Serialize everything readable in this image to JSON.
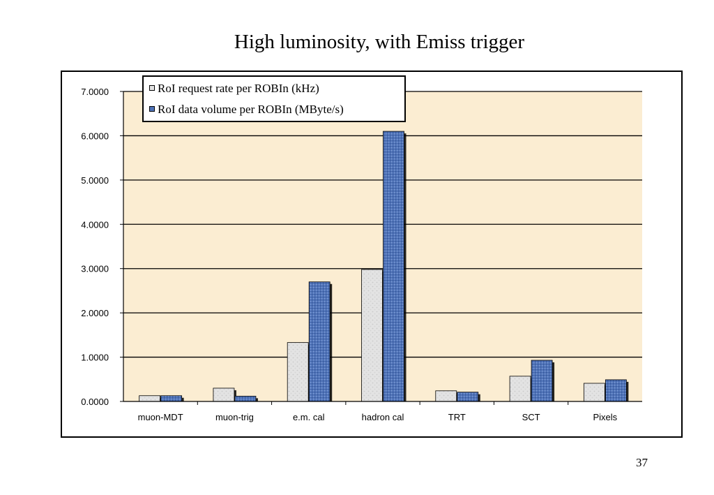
{
  "slide": {
    "title": "High luminosity, with Emiss trigger",
    "page_number": "37"
  },
  "colors": {
    "plot_background": "#fbedd2",
    "series_1_fill": "#e3e3e3",
    "series_2_fill": "#4f73b8",
    "gridline": "#000000"
  },
  "chart_data": {
    "type": "bar",
    "title": "",
    "xlabel": "",
    "ylabel": "",
    "categories": [
      "muon-MDT",
      "muon-trig",
      "e.m. cal",
      "hadron cal",
      "TRT",
      "SCT",
      "Pixels"
    ],
    "series": [
      {
        "name": "RoI request rate per ROBIn (kHz)",
        "values": [
          0.13,
          0.3,
          1.33,
          2.98,
          0.24,
          0.57,
          0.41
        ]
      },
      {
        "name": "RoI data volume per ROBIn (MByte/s)",
        "values": [
          0.13,
          0.12,
          2.7,
          6.1,
          0.21,
          0.93,
          0.49
        ]
      }
    ],
    "ylim": [
      0,
      7
    ],
    "yticks": [
      "0.0000",
      "1.0000",
      "2.0000",
      "3.0000",
      "4.0000",
      "5.0000",
      "6.0000",
      "7.0000"
    ],
    "grid": true,
    "legend_position": "top-left"
  }
}
